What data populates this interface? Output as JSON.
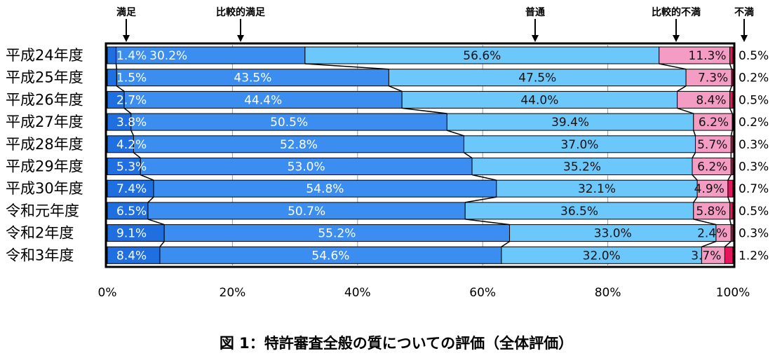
{
  "chart_data": {
    "type": "bar",
    "orientation": "horizontal",
    "stacked": true,
    "percent": true,
    "title": "図 1：特許審査全般の質についての評価（全体評価）",
    "categories": [
      "平成24年度",
      "平成25年度",
      "平成26年度",
      "平成27年度",
      "平成28年度",
      "平成29年度",
      "平成30年度",
      "令和元年度",
      "令和2年度",
      "令和3年度"
    ],
    "series": [
      {
        "name": "満足",
        "color": "#1f6fe0",
        "values": [
          1.4,
          1.5,
          2.7,
          3.8,
          4.2,
          5.3,
          7.4,
          6.5,
          9.1,
          8.4
        ]
      },
      {
        "name": "比較的満足",
        "color": "#3b8ef0",
        "values": [
          30.2,
          43.5,
          44.4,
          50.5,
          52.8,
          53.0,
          54.8,
          50.7,
          55.2,
          54.6
        ]
      },
      {
        "name": "普通",
        "color": "#6cc8fb",
        "values": [
          56.6,
          47.5,
          44.0,
          39.4,
          37.0,
          35.2,
          32.1,
          36.5,
          33.0,
          32.0
        ]
      },
      {
        "name": "比較的不満",
        "color": "#f59cc4",
        "values": [
          11.3,
          7.3,
          8.4,
          6.2,
          5.7,
          6.2,
          4.9,
          5.8,
          2.4,
          3.7
        ]
      },
      {
        "name": "不満",
        "color": "#e8145c",
        "values": [
          0.5,
          0.2,
          0.5,
          0.2,
          0.3,
          0.3,
          0.7,
          0.5,
          0.3,
          1.2
        ]
      }
    ],
    "labels": [
      [
        "1.4%",
        "30.2%",
        "56.6%",
        "11.3%",
        "0.5%"
      ],
      [
        "1.5%",
        "43.5%",
        "47.5%",
        "7.3%",
        "0.2%"
      ],
      [
        "2.7%",
        "44.4%",
        "44.0%",
        "8.4%",
        "0.5%"
      ],
      [
        "3.8%",
        "50.5%",
        "39.4%",
        "6.2%",
        "0.2%"
      ],
      [
        "4.2%",
        "52.8%",
        "37.0%",
        "5.7%",
        "0.3%"
      ],
      [
        "5.3%",
        "53.0%",
        "35.2%",
        "6.2%",
        "0.3%"
      ],
      [
        "7.4%",
        "54.8%",
        "32.1%",
        "4.9%",
        "0.7%"
      ],
      [
        "6.5%",
        "50.7%",
        "36.5%",
        "5.8%",
        "0.5%"
      ],
      [
        "9.1%",
        "55.2%",
        "33.0%",
        "2.4%",
        "0.3%"
      ],
      [
        "8.4%",
        "54.6%",
        "32.0%",
        "3.7%",
        "1.2%"
      ]
    ],
    "xticks": [
      "0%",
      "20%",
      "40%",
      "60%",
      "80%",
      "100%"
    ],
    "xlim": [
      0,
      100
    ],
    "grid": true,
    "legend": "top, arrows pointing to segments"
  }
}
